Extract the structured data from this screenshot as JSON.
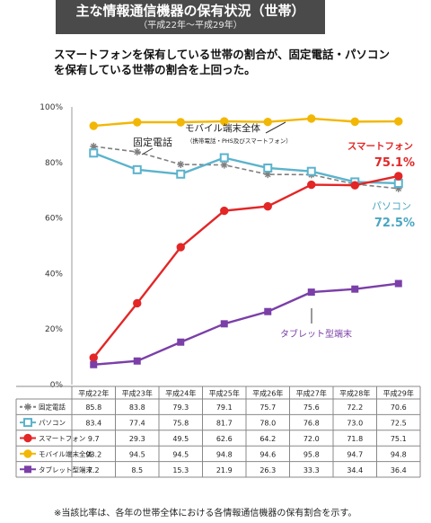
{
  "header": {
    "title": "主な情報通信機器の保有状況（世帯）",
    "subtitle": "（平成22年～平成29年）"
  },
  "lead": [
    "スマートフォンを保有している世帯の割合が、固定電話・パソコン",
    "を保有している世帯の割合を上回った。"
  ],
  "footnote": "※当該比率は、各年の世帯全体における各情報通信機器の保有割合を示す。",
  "chart_data": {
    "type": "line",
    "categories": [
      "平成22年",
      "平成23年",
      "平成24年",
      "平成25年",
      "平成26年",
      "平成27年",
      "平成28年",
      "平成29年"
    ],
    "ylim": [
      0,
      100
    ],
    "yticks": [
      0,
      20,
      40,
      60,
      80,
      100
    ],
    "ytick_labels": [
      "0%",
      "20%",
      "40%",
      "60%",
      "80%",
      "100%"
    ],
    "grid": false,
    "series": [
      {
        "name": "固定電話",
        "values": [
          85.8,
          83.8,
          79.3,
          79.1,
          75.7,
          75.6,
          72.2,
          70.6
        ],
        "color": "#7f7f7f",
        "dashed": true,
        "marker": "asterisk"
      },
      {
        "name": "パソコン",
        "values": [
          83.4,
          77.4,
          75.8,
          81.7,
          78.0,
          76.8,
          73.0,
          72.5
        ],
        "color": "#5bb3cc",
        "dashed": false,
        "marker": "square"
      },
      {
        "name": "スマートフォン",
        "values": [
          9.7,
          29.3,
          49.5,
          62.6,
          64.2,
          72.0,
          71.8,
          75.1
        ],
        "color": "#e32626",
        "dashed": false,
        "marker": "circle"
      },
      {
        "name": "モバイル端末全体",
        "values": [
          93.2,
          94.5,
          94.5,
          94.8,
          94.6,
          95.8,
          94.7,
          94.8
        ],
        "color": "#f2b705",
        "dashed": false,
        "marker": "circle"
      },
      {
        "name": "タブレット型端末",
        "values": [
          7.2,
          8.5,
          15.3,
          21.9,
          26.3,
          33.3,
          34.4,
          36.4
        ],
        "color": "#7b3fa8",
        "dashed": false,
        "marker": "square"
      }
    ],
    "annotations": {
      "fixed_phone": "固定電話",
      "mobile": "モバイル端末全体",
      "mobile_sub": "（携帯電話・PHS及びスマートフォン）",
      "smartphone": "スマートフォン",
      "smartphone_value": "75.1%",
      "pc": "パソコン",
      "pc_value": "72.5%",
      "tablet": "タブレット型端末"
    }
  }
}
